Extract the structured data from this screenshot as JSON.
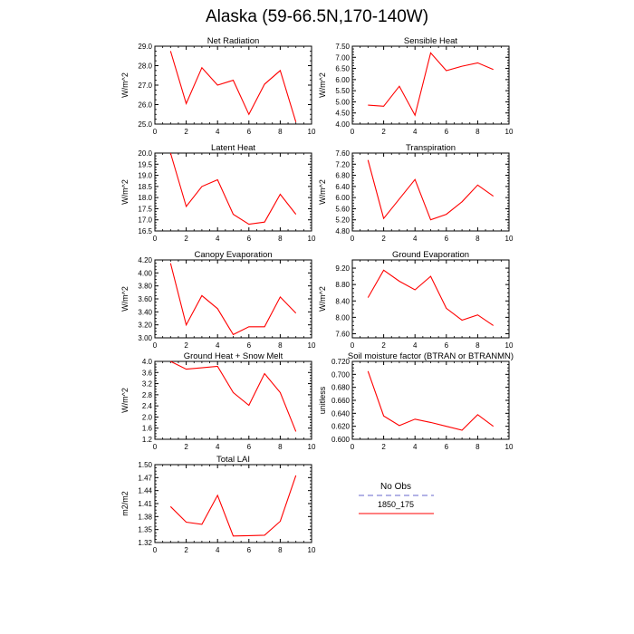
{
  "page": {
    "title": "Alaska (59-66.5N,170-140W)"
  },
  "colors": {
    "series": "#ff0000",
    "no_obs": "#9999dd",
    "axis": "#000000"
  },
  "legend": {
    "obs_label": "No Obs",
    "model_label": "1850_175"
  },
  "chart_data": [
    {
      "type": "line",
      "title": "Net Radiation",
      "ylabel": "W/m^2",
      "xlim": [
        0,
        10
      ],
      "ylim": [
        25.0,
        29.0
      ],
      "xticks": [
        "0",
        "2",
        "4",
        "6",
        "8",
        "10"
      ],
      "yticks": [
        "25.0",
        "26.0",
        "27.0",
        "28.0",
        "29.0"
      ],
      "yvals": [
        25.0,
        26.0,
        27.0,
        28.0,
        29.0
      ],
      "series": [
        {
          "x": [
            1,
            2,
            3,
            4,
            5,
            6,
            7,
            8,
            9
          ],
          "y": [
            28.75,
            26.05,
            27.9,
            27.0,
            27.25,
            25.5,
            27.05,
            27.75,
            25.1
          ]
        }
      ]
    },
    {
      "type": "line",
      "title": "Sensible Heat",
      "ylabel": "W/m^2",
      "xlim": [
        0,
        10
      ],
      "ylim": [
        4.0,
        7.5
      ],
      "xticks": [
        "0",
        "2",
        "4",
        "6",
        "8",
        "10"
      ],
      "yticks": [
        "4.00",
        "4.50",
        "5.00",
        "5.50",
        "6.00",
        "6.50",
        "7.00",
        "7.50"
      ],
      "yvals": [
        4.0,
        4.5,
        5.0,
        5.5,
        6.0,
        6.5,
        7.0,
        7.5
      ],
      "series": [
        {
          "x": [
            1,
            2,
            3,
            4,
            5,
            6,
            7,
            8,
            9
          ],
          "y": [
            4.85,
            4.8,
            5.7,
            4.4,
            7.2,
            6.4,
            6.6,
            6.75,
            6.45
          ]
        }
      ]
    },
    {
      "type": "line",
      "title": "Latent Heat",
      "ylabel": "W/m^2",
      "xlim": [
        0,
        10
      ],
      "ylim": [
        16.5,
        20.0
      ],
      "xticks": [
        "0",
        "2",
        "4",
        "6",
        "8",
        "10"
      ],
      "yticks": [
        "16.5",
        "17.0",
        "17.5",
        "18.0",
        "18.5",
        "19.0",
        "19.5",
        "20.0"
      ],
      "yvals": [
        16.5,
        17.0,
        17.5,
        18.0,
        18.5,
        19.0,
        19.5,
        20.0
      ],
      "series": [
        {
          "x": [
            1,
            2,
            3,
            4,
            5,
            6,
            7,
            8,
            9
          ],
          "y": [
            20.0,
            17.6,
            18.5,
            18.8,
            17.25,
            16.8,
            16.9,
            18.15,
            17.25
          ]
        }
      ]
    },
    {
      "type": "line",
      "title": "Transpiration",
      "ylabel": "W/m^2",
      "xlim": [
        0,
        10
      ],
      "ylim": [
        4.8,
        7.6
      ],
      "xticks": [
        "0",
        "2",
        "4",
        "6",
        "8",
        "10"
      ],
      "yticks": [
        "4.80",
        "5.20",
        "5.60",
        "6.00",
        "6.40",
        "6.80",
        "7.20",
        "7.60"
      ],
      "yvals": [
        4.8,
        5.2,
        5.6,
        6.0,
        6.4,
        6.8,
        7.2,
        7.6
      ],
      "series": [
        {
          "x": [
            1,
            2,
            3,
            4,
            5,
            6,
            7,
            8,
            9
          ],
          "y": [
            7.35,
            5.25,
            5.95,
            6.65,
            5.2,
            5.4,
            5.85,
            6.45,
            6.05
          ]
        }
      ]
    },
    {
      "type": "line",
      "title": "Canopy Evaporation",
      "ylabel": "W/m^2",
      "xlim": [
        0,
        10
      ],
      "ylim": [
        3.0,
        4.2
      ],
      "xticks": [
        "0",
        "2",
        "4",
        "6",
        "8",
        "10"
      ],
      "yticks": [
        "3.00",
        "3.20",
        "3.40",
        "3.60",
        "3.80",
        "4.00",
        "4.20"
      ],
      "yvals": [
        3.0,
        3.2,
        3.4,
        3.6,
        3.8,
        4.0,
        4.2
      ],
      "series": [
        {
          "x": [
            1,
            2,
            3,
            4,
            5,
            6,
            7,
            8,
            9
          ],
          "y": [
            4.15,
            3.2,
            3.65,
            3.45,
            3.05,
            3.17,
            3.17,
            3.63,
            3.38
          ]
        }
      ]
    },
    {
      "type": "line",
      "title": "Ground Evaporation",
      "ylabel": "W/m^2",
      "xlim": [
        0,
        10
      ],
      "ylim": [
        7.5,
        9.4
      ],
      "xticks": [
        "0",
        "2",
        "4",
        "6",
        "8",
        "10"
      ],
      "yticks": [
        "7.60",
        "8.00",
        "8.40",
        "8.80",
        "9.20"
      ],
      "yvals": [
        7.6,
        8.0,
        8.4,
        8.8,
        9.2
      ],
      "series": [
        {
          "x": [
            1,
            2,
            3,
            4,
            5,
            6,
            7,
            8,
            9
          ],
          "y": [
            8.48,
            9.15,
            8.88,
            8.67,
            9.0,
            8.22,
            7.93,
            8.06,
            7.8
          ]
        }
      ]
    },
    {
      "type": "line",
      "title": "Ground Heat + Snow Melt",
      "ylabel": "W/m^2",
      "xlim": [
        0,
        10
      ],
      "ylim": [
        1.2,
        4.0
      ],
      "xticks": [
        "0",
        "2",
        "4",
        "6",
        "8",
        "10"
      ],
      "yticks": [
        "1.2",
        "1.6",
        "2.0",
        "2.4",
        "2.8",
        "3.2",
        "3.6",
        "4.0"
      ],
      "yvals": [
        1.2,
        1.6,
        2.0,
        2.4,
        2.8,
        3.2,
        3.6,
        4.0
      ],
      "series": [
        {
          "x": [
            1,
            2,
            3,
            4,
            5,
            6,
            7,
            8,
            9
          ],
          "y": [
            4.0,
            3.72,
            3.77,
            3.82,
            2.88,
            2.42,
            3.56,
            2.88,
            1.48
          ]
        }
      ]
    },
    {
      "type": "line",
      "title": "Soil moisture factor (BTRAN or BTRANMN)",
      "ylabel": "unitless",
      "xlim": [
        0,
        10
      ],
      "ylim": [
        0.6,
        0.72
      ],
      "xticks": [
        "0",
        "2",
        "4",
        "6",
        "8",
        "10"
      ],
      "yticks": [
        "0.600",
        "0.620",
        "0.640",
        "0.660",
        "0.680",
        "0.700",
        "0.720"
      ],
      "yvals": [
        0.6,
        0.62,
        0.64,
        0.66,
        0.68,
        0.7,
        0.72
      ],
      "series": [
        {
          "x": [
            1,
            2,
            3,
            4,
            5,
            6,
            7,
            8,
            9
          ],
          "y": [
            0.705,
            0.636,
            0.621,
            0.631,
            0.626,
            0.62,
            0.614,
            0.638,
            0.62
          ]
        }
      ]
    },
    {
      "type": "line",
      "title": "Total LAI",
      "ylabel": "m2/m2",
      "xlim": [
        0,
        10
      ],
      "ylim": [
        1.32,
        1.5
      ],
      "xticks": [
        "0",
        "2",
        "4",
        "6",
        "8",
        "10"
      ],
      "yticks": [
        "1.32",
        "1.35",
        "1.38",
        "1.41",
        "1.44",
        "1.47",
        "1.50"
      ],
      "yvals": [
        1.32,
        1.35,
        1.38,
        1.41,
        1.44,
        1.47,
        1.5
      ],
      "series": [
        {
          "x": [
            1,
            2,
            3,
            4,
            5,
            6,
            7,
            8,
            9
          ],
          "y": [
            1.403,
            1.367,
            1.362,
            1.429,
            1.335,
            1.336,
            1.337,
            1.369,
            1.475
          ]
        }
      ]
    }
  ]
}
